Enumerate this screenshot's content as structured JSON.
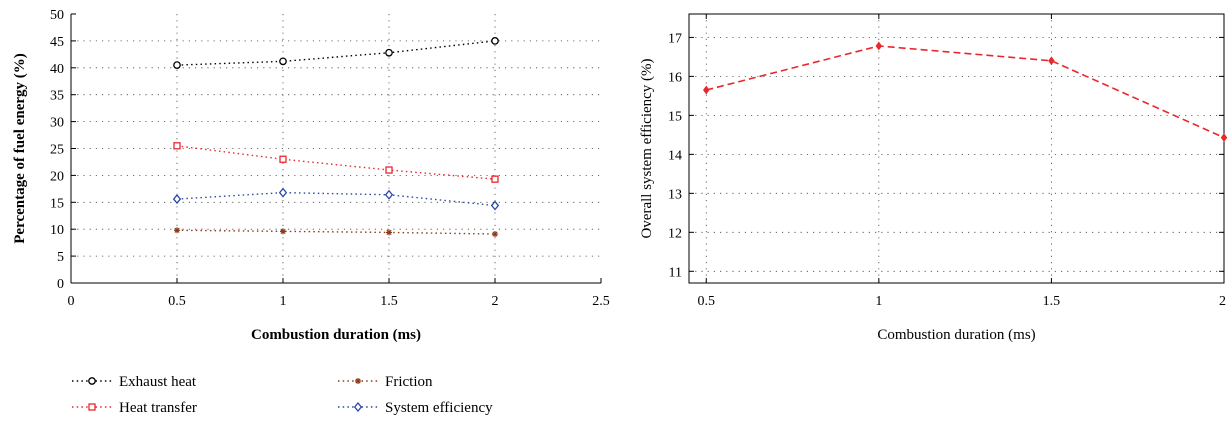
{
  "chart_data": [
    {
      "type": "line",
      "xlabel": "Combustion duration (ms)",
      "ylabel": "Percentage of fuel energy (%)",
      "xlim": [
        0,
        2.5
      ],
      "ylim": [
        0,
        50
      ],
      "xticks": [
        0,
        0.5,
        1,
        1.5,
        2,
        2.5
      ],
      "yticks": [
        0,
        5,
        10,
        15,
        20,
        25,
        30,
        35,
        40,
        45,
        50
      ],
      "grid": true,
      "legend_position": "bottom",
      "x": [
        0.5,
        1,
        1.5,
        2
      ],
      "series": [
        {
          "name": "Exhaust heat",
          "values": [
            40.5,
            41.2,
            42.8,
            45.0
          ],
          "color": "#000000",
          "marker": "circle"
        },
        {
          "name": "Heat transfer",
          "values": [
            25.5,
            23.0,
            21.0,
            19.3
          ],
          "color": "#e8282e",
          "marker": "square"
        },
        {
          "name": "Friction",
          "values": [
            9.8,
            9.6,
            9.4,
            9.1
          ],
          "color": "#8b3a1a",
          "marker": "star"
        },
        {
          "name": "System efficiency",
          "values": [
            15.6,
            16.8,
            16.4,
            14.4
          ],
          "color": "#2a47a8",
          "marker": "diamond"
        }
      ]
    },
    {
      "type": "line",
      "xlabel": "Combustion duration (ms)",
      "ylabel": "Overall system efficiency (%)",
      "xlim": [
        0.45,
        2.0
      ],
      "ylim": [
        10.7,
        17.6
      ],
      "xticks": [
        0.5,
        1,
        1.5,
        2
      ],
      "yticks": [
        11,
        12,
        13,
        14,
        15,
        16,
        17
      ],
      "grid": true,
      "x": [
        0.5,
        1,
        1.5,
        2
      ],
      "series": [
        {
          "values": [
            15.65,
            16.78,
            16.4,
            14.43
          ],
          "color": "#e8282e",
          "marker": "diamond"
        }
      ]
    }
  ]
}
